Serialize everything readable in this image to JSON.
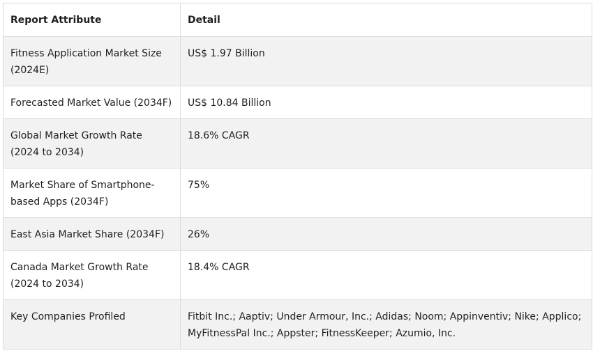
{
  "table": {
    "headers": {
      "attribute": "Report Attribute",
      "detail": "Detail"
    },
    "rows": [
      {
        "attribute": "Fitness Application Market Size (2024E)",
        "detail": "US$ 1.97 Billion"
      },
      {
        "attribute": "Forecasted Market Value (2034F)",
        "detail": "US$ 10.84 Billion"
      },
      {
        "attribute": "Global Market Growth Rate (2024 to 2034)",
        "detail": "18.6% CAGR"
      },
      {
        "attribute": "Market Share of Smartphone-based Apps (2034F)",
        "detail": "75%"
      },
      {
        "attribute": "East Asia Market Share (2034F)",
        "detail": "26%"
      },
      {
        "attribute": "Canada Market Growth Rate (2024 to 2034)",
        "detail": "18.4% CAGR"
      },
      {
        "attribute": "Key Companies Profiled",
        "detail": "Fitbit Inc.; Aaptiv; Under Armour, Inc.; Adidas; Noom; Appinventiv; Nike; Applico; MyFitnessPal Inc.; Appster; FitnessKeeper; Azumio, Inc."
      }
    ]
  },
  "colors": {
    "border": "#dcdcdc",
    "alt_row": "#f2f2f2",
    "text": "#1f1f1f"
  }
}
